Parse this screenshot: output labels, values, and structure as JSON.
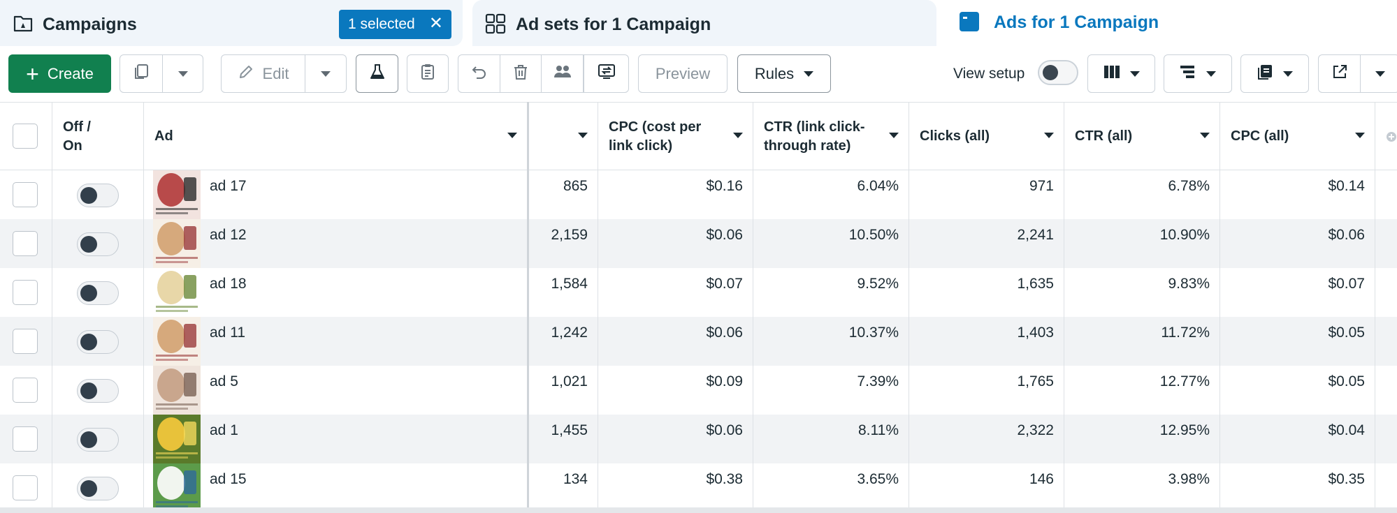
{
  "tabs": {
    "campaigns": "Campaigns",
    "selected_badge": "1 selected",
    "adsets": "Ad sets for 1 Campaign",
    "ads": "Ads for 1 Campaign"
  },
  "toolbar": {
    "create": "Create",
    "edit": "Edit",
    "preview": "Preview",
    "rules": "Rules",
    "view_setup": "View setup"
  },
  "table": {
    "headers": {
      "off_on_1": "Off /",
      "off_on_2": "On",
      "ad": "Ad",
      "cpc_1": "CPC (cost per",
      "cpc_2": "link click)",
      "ctr_1": "CTR (link click-",
      "ctr_2": "through rate)",
      "clicks_all": "Clicks (all)",
      "ctr_all": "CTR (all)",
      "cpc_all": "CPC (all)"
    },
    "rows": [
      {
        "name": "ad 17",
        "metric": "865",
        "cpc_link": "$0.16",
        "ctr_link": "6.04%",
        "clicks_all": "971",
        "ctr_all": "6.78%",
        "cpc_all": "$0.14"
      },
      {
        "name": "ad 12",
        "metric": "2,159",
        "cpc_link": "$0.06",
        "ctr_link": "10.50%",
        "clicks_all": "2,241",
        "ctr_all": "10.90%",
        "cpc_all": "$0.06"
      },
      {
        "name": "ad 18",
        "metric": "1,584",
        "cpc_link": "$0.07",
        "ctr_link": "9.52%",
        "clicks_all": "1,635",
        "ctr_all": "9.83%",
        "cpc_all": "$0.07"
      },
      {
        "name": "ad 11",
        "metric": "1,242",
        "cpc_link": "$0.06",
        "ctr_link": "10.37%",
        "clicks_all": "1,403",
        "ctr_all": "11.72%",
        "cpc_all": "$0.05"
      },
      {
        "name": "ad 5",
        "metric": "1,021",
        "cpc_link": "$0.09",
        "ctr_link": "7.39%",
        "clicks_all": "1,765",
        "ctr_all": "12.77%",
        "cpc_all": "$0.05"
      },
      {
        "name": "ad 1",
        "metric": "1,455",
        "cpc_link": "$0.06",
        "ctr_link": "8.11%",
        "clicks_all": "2,322",
        "ctr_all": "12.95%",
        "cpc_all": "$0.04"
      },
      {
        "name": "ad 15",
        "metric": "134",
        "cpc_link": "$0.38",
        "ctr_link": "3.65%",
        "clicks_all": "146",
        "ctr_all": "3.98%",
        "cpc_all": "$0.35"
      }
    ]
  },
  "colors": {
    "accent_blue": "#0a78be",
    "create_green": "#11804f",
    "tab_bg": "#f0f5fa",
    "row_alt": "#f1f3f5"
  },
  "icons": [
    "flag-folder-icon",
    "grid-icon",
    "ad-window-icon",
    "copy-icon",
    "pencil-icon",
    "flask-icon",
    "clipboard-icon",
    "undo-icon",
    "trash-icon",
    "people-icon",
    "compare-icon",
    "columns-icon",
    "breakdown-icon",
    "reports-icon",
    "export-icon"
  ]
}
